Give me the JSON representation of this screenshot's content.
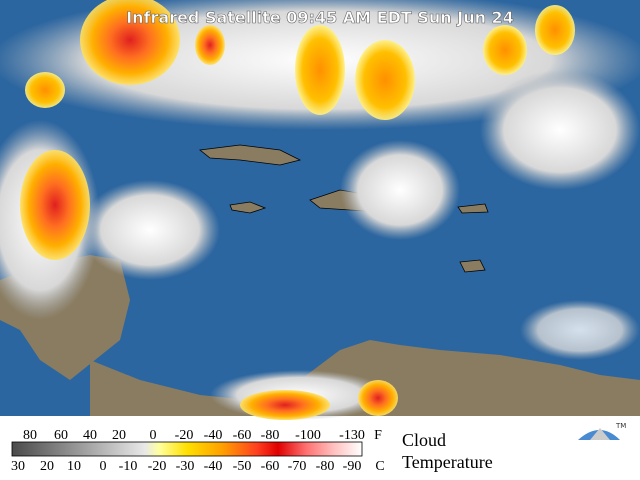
{
  "title": "Infrared Satellite 09:45 AM EDT Sun Jun 24",
  "legend": {
    "fahrenheit": {
      "labels": [
        "80",
        "60",
        "40",
        "20",
        "0",
        "-20",
        "-40",
        "-60",
        "-80",
        "-100",
        "-130"
      ],
      "unit": "F"
    },
    "celsius": {
      "labels": [
        "30",
        "20",
        "10",
        "0",
        "-10",
        "-20",
        "-30",
        "-40",
        "-50",
        "-60",
        "-70",
        "-80",
        "-90"
      ],
      "unit": "C"
    },
    "caption": [
      "Cloud",
      "Temperature"
    ]
  },
  "logo": "TM"
}
